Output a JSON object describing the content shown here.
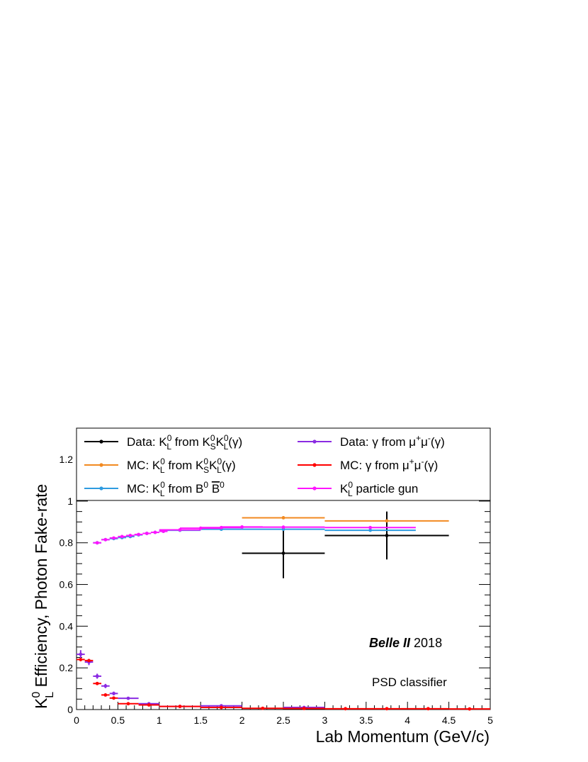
{
  "chart_data": {
    "type": "scatter",
    "xlabel": "Lab Momentum (GeV/c)",
    "ylabel": {
      "prefix": "K",
      "sup": "0",
      "sub": "L",
      "rest": " Efficiency, Photon Fake-rate"
    },
    "xlim": [
      0,
      5
    ],
    "ylim": [
      0,
      1.35
    ],
    "x_ticks": [
      "0",
      "0.5",
      "1",
      "1.5",
      "2",
      "2.5",
      "3",
      "3.5",
      "4",
      "4.5",
      "5"
    ],
    "y_ticks": [
      "0",
      "0.2",
      "0.4",
      "0.6",
      "0.8",
      "1",
      "1.2"
    ],
    "grid": false,
    "legend_placement": "top",
    "annotations": {
      "experiment": "Belle II",
      "year": " 2018",
      "classifier": "PSD classifier"
    },
    "series": [
      {
        "key": "data_kl",
        "color": "#000000",
        "legend": [
          {
            "t": "Data: K"
          },
          {
            "t": "0",
            "s": "sup"
          },
          {
            "t": "L",
            "s": "sub"
          },
          {
            "t": " from K"
          },
          {
            "t": "0",
            "s": "sup"
          },
          {
            "t": "S",
            "s": "sub"
          },
          {
            "t": "K"
          },
          {
            "t": "0",
            "s": "sup"
          },
          {
            "t": "L",
            "s": "sub"
          },
          {
            "t": "(γ)"
          }
        ],
        "points": [
          {
            "x": 2.5,
            "y": 0.75,
            "xerr": 0.5,
            "yerr": 0.12
          },
          {
            "x": 3.75,
            "y": 0.835,
            "xerr": 0.75,
            "yerr": 0.115
          }
        ]
      },
      {
        "key": "mc_kl_ks",
        "color": "#f28a21",
        "legend": [
          {
            "t": "MC: K"
          },
          {
            "t": "0",
            "s": "sup"
          },
          {
            "t": "L",
            "s": "sub"
          },
          {
            "t": " from K"
          },
          {
            "t": "0",
            "s": "sup"
          },
          {
            "t": "S",
            "s": "sub"
          },
          {
            "t": "K"
          },
          {
            "t": "0",
            "s": "sup"
          },
          {
            "t": "L",
            "s": "sub"
          },
          {
            "t": "(γ)"
          }
        ],
        "points": [
          {
            "x": 2.5,
            "y": 0.92,
            "xerr": 0.5,
            "yerr": 0.006
          },
          {
            "x": 3.75,
            "y": 0.905,
            "xerr": 0.75,
            "yerr": 0.006
          }
        ]
      },
      {
        "key": "mc_kl_bb",
        "color": "#2e9be0",
        "legend": [
          {
            "t": "MC: K"
          },
          {
            "t": "0",
            "s": "sup"
          },
          {
            "t": "L",
            "s": "sub"
          },
          {
            "t": " from B"
          },
          {
            "t": "0",
            "s": "sup"
          },
          {
            "t": " "
          },
          {
            "t": "B",
            "s": "bar"
          },
          {
            "t": "0",
            "s": "sup"
          }
        ],
        "points": [
          {
            "x": 0.25,
            "y": 0.8,
            "xerr": 0.05,
            "yerr": 0.008
          },
          {
            "x": 0.35,
            "y": 0.815,
            "xerr": 0.05,
            "yerr": 0.006
          },
          {
            "x": 0.45,
            "y": 0.82,
            "xerr": 0.05,
            "yerr": 0.006
          },
          {
            "x": 0.55,
            "y": 0.825,
            "xerr": 0.05,
            "yerr": 0.006
          },
          {
            "x": 0.65,
            "y": 0.83,
            "xerr": 0.05,
            "yerr": 0.005
          },
          {
            "x": 0.75,
            "y": 0.838,
            "xerr": 0.05,
            "yerr": 0.005
          },
          {
            "x": 0.85,
            "y": 0.845,
            "xerr": 0.05,
            "yerr": 0.005
          },
          {
            "x": 0.95,
            "y": 0.85,
            "xerr": 0.05,
            "yerr": 0.005
          },
          {
            "x": 1.05,
            "y": 0.855,
            "xerr": 0.05,
            "yerr": 0.005
          },
          {
            "x": 1.25,
            "y": 0.86,
            "xerr": 0.25,
            "yerr": 0.004
          },
          {
            "x": 1.75,
            "y": 0.865,
            "xerr": 0.25,
            "yerr": 0.004
          },
          {
            "x": 2.5,
            "y": 0.865,
            "xerr": 0.5,
            "yerr": 0.004
          },
          {
            "x": 3.55,
            "y": 0.86,
            "xerr": 0.55,
            "yerr": 0.004
          }
        ]
      },
      {
        "key": "data_gamma",
        "color": "#8a2be2",
        "legend": [
          {
            "t": "Data: γ from μ"
          },
          {
            "t": "+",
            "s": "sup"
          },
          {
            "t": "μ"
          },
          {
            "t": "-",
            "s": "sup"
          },
          {
            "t": "(γ)"
          }
        ],
        "points": [
          {
            "x": 0.05,
            "y": 0.265,
            "xerr": 0.05,
            "yerr": 0.02
          },
          {
            "x": 0.15,
            "y": 0.228,
            "xerr": 0.05,
            "yerr": 0.015
          },
          {
            "x": 0.25,
            "y": 0.16,
            "xerr": 0.05,
            "yerr": 0.012
          },
          {
            "x": 0.35,
            "y": 0.113,
            "xerr": 0.05,
            "yerr": 0.01
          },
          {
            "x": 0.45,
            "y": 0.077,
            "xerr": 0.05,
            "yerr": 0.009
          },
          {
            "x": 0.625,
            "y": 0.054,
            "xerr": 0.125,
            "yerr": 0.006
          },
          {
            "x": 0.875,
            "y": 0.028,
            "xerr": 0.125,
            "yerr": 0.005
          },
          {
            "x": 1.25,
            "y": 0.015,
            "xerr": 0.25,
            "yerr": 0.004
          },
          {
            "x": 1.75,
            "y": 0.018,
            "xerr": 0.25,
            "yerr": 0.004
          },
          {
            "x": 2.75,
            "y": 0.01,
            "xerr": 0.25,
            "yerr": 0.003
          }
        ]
      },
      {
        "key": "mc_gamma",
        "color": "#ff0000",
        "legend": [
          {
            "t": "MC: γ from μ"
          },
          {
            "t": "+",
            "s": "sup"
          },
          {
            "t": "μ"
          },
          {
            "t": "-",
            "s": "sup"
          },
          {
            "t": "(γ)"
          }
        ],
        "points": [
          {
            "x": 0.05,
            "y": 0.24,
            "xerr": 0.05,
            "yerr": 0.008
          },
          {
            "x": 0.15,
            "y": 0.235,
            "xerr": 0.05,
            "yerr": 0.007
          },
          {
            "x": 0.25,
            "y": 0.125,
            "xerr": 0.05,
            "yerr": 0.006
          },
          {
            "x": 0.35,
            "y": 0.07,
            "xerr": 0.05,
            "yerr": 0.005
          },
          {
            "x": 0.45,
            "y": 0.055,
            "xerr": 0.05,
            "yerr": 0.004
          },
          {
            "x": 0.625,
            "y": 0.028,
            "xerr": 0.125,
            "yerr": 0.003
          },
          {
            "x": 0.875,
            "y": 0.022,
            "xerr": 0.125,
            "yerr": 0.003
          },
          {
            "x": 1.25,
            "y": 0.015,
            "xerr": 0.25,
            "yerr": 0.002
          },
          {
            "x": 1.75,
            "y": 0.01,
            "xerr": 0.25,
            "yerr": 0.002
          },
          {
            "x": 2.25,
            "y": 0.006,
            "xerr": 0.25,
            "yerr": 0.002
          },
          {
            "x": 2.75,
            "y": 0.005,
            "xerr": 0.25,
            "yerr": 0.002
          },
          {
            "x": 3.25,
            "y": 0.004,
            "xerr": 0.25,
            "yerr": 0.002
          },
          {
            "x": 3.75,
            "y": 0.004,
            "xerr": 0.25,
            "yerr": 0.002
          },
          {
            "x": 4.25,
            "y": 0.004,
            "xerr": 0.25,
            "yerr": 0.002
          },
          {
            "x": 4.75,
            "y": 0.003,
            "xerr": 0.25,
            "yerr": 0.002
          }
        ]
      },
      {
        "key": "kl_gun",
        "color": "#ff14ff",
        "legend": [
          {
            "t": "K"
          },
          {
            "t": "0",
            "s": "sup"
          },
          {
            "t": "L",
            "s": "sub"
          },
          {
            "t": " particle gun"
          }
        ],
        "points": [
          {
            "x": 0.25,
            "y": 0.8,
            "xerr": 0.05,
            "yerr": 0.005
          },
          {
            "x": 0.35,
            "y": 0.815,
            "xerr": 0.05,
            "yerr": 0.004
          },
          {
            "x": 0.45,
            "y": 0.823,
            "xerr": 0.05,
            "yerr": 0.004
          },
          {
            "x": 0.55,
            "y": 0.83,
            "xerr": 0.05,
            "yerr": 0.004
          },
          {
            "x": 0.65,
            "y": 0.835,
            "xerr": 0.05,
            "yerr": 0.004
          },
          {
            "x": 0.75,
            "y": 0.84,
            "xerr": 0.05,
            "yerr": 0.004
          },
          {
            "x": 0.85,
            "y": 0.845,
            "xerr": 0.05,
            "yerr": 0.004
          },
          {
            "x": 0.95,
            "y": 0.85,
            "xerr": 0.05,
            "yerr": 0.004
          },
          {
            "x": 1.05,
            "y": 0.855,
            "xerr": 0.05,
            "yerr": 0.004
          },
          {
            "x": 1.25,
            "y": 0.862,
            "xerr": 0.25,
            "yerr": 0.003
          },
          {
            "x": 1.5,
            "y": 0.87,
            "xerr": 0.25,
            "yerr": 0.003
          },
          {
            "x": 1.75,
            "y": 0.873,
            "xerr": 0.25,
            "yerr": 0.003
          },
          {
            "x": 2.0,
            "y": 0.876,
            "xerr": 0.25,
            "yerr": 0.003
          },
          {
            "x": 2.5,
            "y": 0.875,
            "xerr": 0.5,
            "yerr": 0.003
          },
          {
            "x": 3.55,
            "y": 0.873,
            "xerr": 0.55,
            "yerr": 0.003
          }
        ]
      }
    ]
  }
}
